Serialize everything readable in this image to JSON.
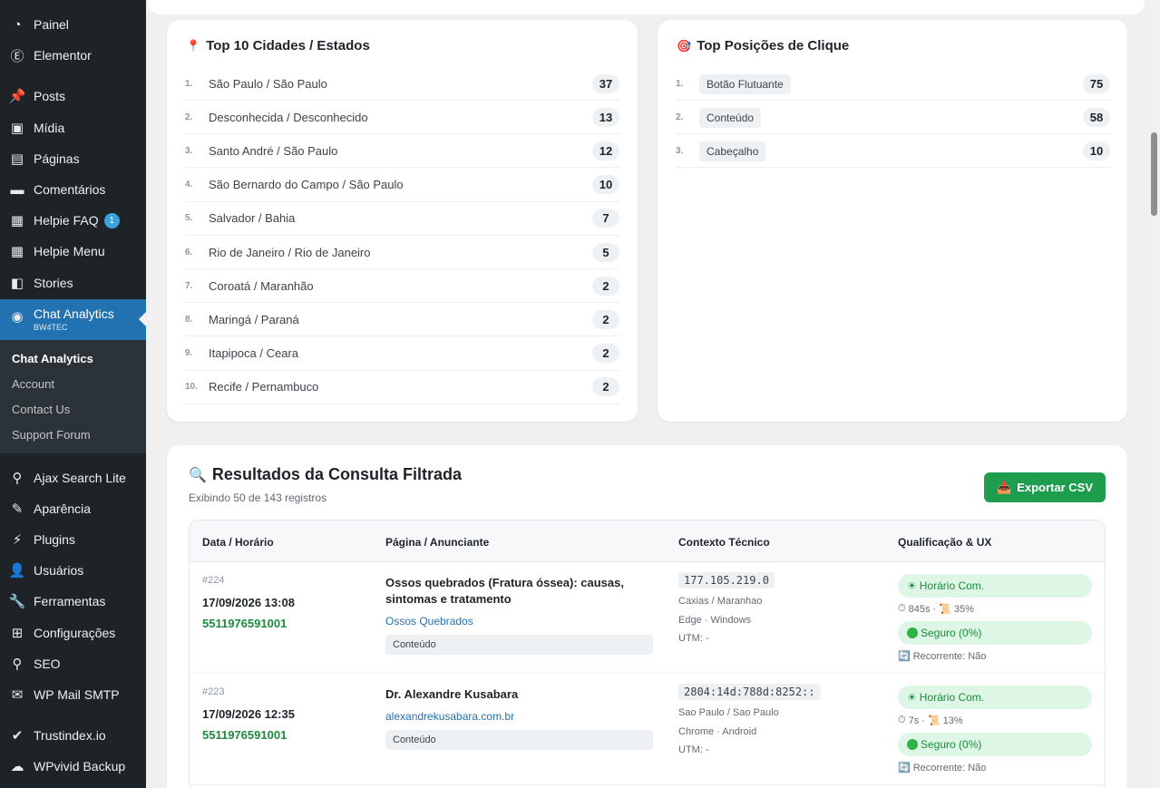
{
  "sidebar": {
    "items": [
      {
        "label": "Painel",
        "icon": "dashboard-icon",
        "glyph": "◔"
      },
      {
        "label": "Elementor",
        "icon": "elementor-icon",
        "glyph": "Ⓔ"
      },
      {
        "label": "Posts",
        "icon": "pin-icon",
        "glyph": "📌"
      },
      {
        "label": "Mídia",
        "icon": "media-icon",
        "glyph": "▣"
      },
      {
        "label": "Páginas",
        "icon": "pages-icon",
        "glyph": "▤"
      },
      {
        "label": "Comentários",
        "icon": "comment-icon",
        "glyph": "▬"
      },
      {
        "label": "Helpie FAQ",
        "icon": "faq-icon",
        "glyph": "▦",
        "badge": "1"
      },
      {
        "label": "Helpie Menu",
        "icon": "menu-icon",
        "glyph": "▦"
      },
      {
        "label": "Stories",
        "icon": "stories-icon",
        "glyph": "◧"
      },
      {
        "label": "Chat Analytics",
        "sub": "BW4TEC",
        "icon": "whatsapp-icon",
        "glyph": "◉"
      },
      {
        "label": "Ajax Search Lite",
        "icon": "search-icon",
        "glyph": "⚲"
      },
      {
        "label": "Aparência",
        "icon": "appearance-icon",
        "glyph": "✎"
      },
      {
        "label": "Plugins",
        "icon": "plugins-icon",
        "glyph": "⚡"
      },
      {
        "label": "Usuários",
        "icon": "users-icon",
        "glyph": "👤"
      },
      {
        "label": "Ferramentas",
        "icon": "tools-icon",
        "glyph": "🔧"
      },
      {
        "label": "Configurações",
        "icon": "settings-icon",
        "glyph": "⊞"
      },
      {
        "label": "SEO",
        "icon": "seo-icon",
        "glyph": "⚲"
      },
      {
        "label": "WP Mail SMTP",
        "icon": "mail-icon",
        "glyph": "✉"
      },
      {
        "label": "Trustindex.io",
        "icon": "trustindex-icon",
        "glyph": "✔"
      },
      {
        "label": "WPvivid Backup",
        "icon": "cloud-icon",
        "glyph": "☁"
      }
    ],
    "submenu": [
      "Chat Analytics",
      "Account",
      "Contact Us",
      "Support Forum"
    ]
  },
  "cities": {
    "title": "Top 10 Cidades / Estados",
    "rows": [
      {
        "n": "1.",
        "label": "São Paulo / São Paulo",
        "count": "37"
      },
      {
        "n": "2.",
        "label": "Desconhecida / Desconhecido",
        "count": "13"
      },
      {
        "n": "3.",
        "label": "Santo André / São Paulo",
        "count": "12"
      },
      {
        "n": "4.",
        "label": "São Bernardo do Campo / São Paulo",
        "count": "10"
      },
      {
        "n": "5.",
        "label": "Salvador / Bahia",
        "count": "7"
      },
      {
        "n": "6.",
        "label": "Rio de Janeiro / Rio de Janeiro",
        "count": "5"
      },
      {
        "n": "7.",
        "label": "Coroatá / Maranhão",
        "count": "2"
      },
      {
        "n": "8.",
        "label": "Maringá / Paraná",
        "count": "2"
      },
      {
        "n": "9.",
        "label": "Itapipoca / Ceara",
        "count": "2"
      },
      {
        "n": "10.",
        "label": "Recife / Pernambuco",
        "count": "2"
      }
    ]
  },
  "positions": {
    "title": "Top Posições de Clique",
    "rows": [
      {
        "n": "1.",
        "label": "Botão Flutuante",
        "count": "75"
      },
      {
        "n": "2.",
        "label": "Conteúdo",
        "count": "58"
      },
      {
        "n": "3.",
        "label": "Cabeçalho",
        "count": "10"
      }
    ]
  },
  "results": {
    "title": "Resultados da Consulta Filtrada",
    "subtitle": "Exibindo 50 de 143 registros",
    "export_label": "Exportar CSV",
    "headers": [
      "Data / Horário",
      "Página / Anunciante",
      "Contexto Técnico",
      "Qualificação & UX"
    ],
    "rows": [
      {
        "id": "#224",
        "date": "17/09/2026 13:08",
        "phone": "5511976591001",
        "page": "Ossos quebrados (Fratura óssea): causas, sintomas e tratamento",
        "link": "Ossos Quebrados",
        "position": "Conteúdo",
        "ip": "177.105.219.0",
        "location": "Caxias / Maranhao",
        "device": "Edge · Windows",
        "utm": "UTM: -",
        "schedule": "Horário Com.",
        "metrics": "845s · ",
        "scroll": "35%",
        "safety": "Seguro (0%)",
        "recurrent": "Recorrente: Não"
      },
      {
        "id": "#223",
        "date": "17/09/2026 12:35",
        "phone": "5511976591001",
        "page": "Dr. Alexandre Kusabara",
        "link": "alexandrekusabara.com.br",
        "position": "Conteúdo",
        "ip": "2804:14d:788d:8252::",
        "location": "Sao Paulo / Sao Paulo",
        "device": "Chrome · Android",
        "utm": "UTM: -",
        "schedule": "Horário Com.",
        "metrics": "7s · ",
        "scroll": "13%",
        "safety": "Seguro (0%)",
        "recurrent": "Recorrente: Não"
      }
    ]
  },
  "colors": {
    "accent": "#2271b1",
    "export_green": "#1f9d4f",
    "phone_green": "#1e8a3c"
  }
}
